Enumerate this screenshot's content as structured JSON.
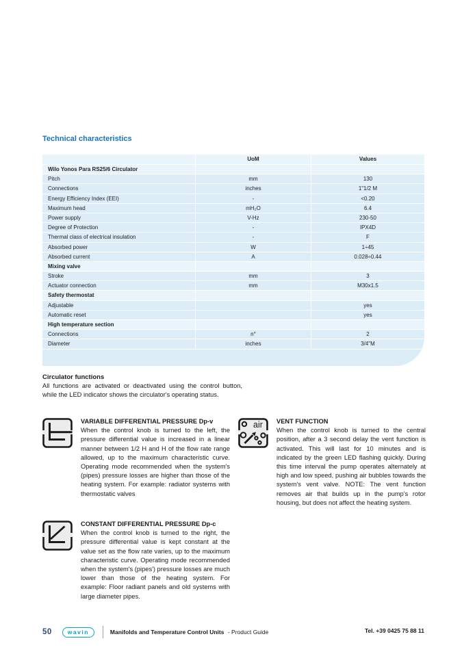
{
  "page": {
    "section_title": "Technical characteristics"
  },
  "table": {
    "headers": {
      "uom": "UoM",
      "values": "Values"
    },
    "rows": [
      {
        "type": "section",
        "label": "Wilo Yonos Para RS25/6 Circulator"
      },
      {
        "type": "data",
        "label": "Pitch",
        "uom": "mm",
        "value": "130"
      },
      {
        "type": "data",
        "label": "Connections",
        "uom": "inches",
        "value": "1\"1/2 M"
      },
      {
        "type": "data",
        "label": "Energy Efficiency Index (EEI)",
        "uom": "-",
        "value": "<0.20"
      },
      {
        "type": "data",
        "label": "Maximum head",
        "uom": "mH₂O",
        "value": "6.4"
      },
      {
        "type": "data",
        "label": "Power supply",
        "uom": "V-Hz",
        "value": "230-50"
      },
      {
        "type": "data",
        "label": "Degree of Protection",
        "uom": "-",
        "value": "IPX4D"
      },
      {
        "type": "data",
        "label": "Thermal class of electrical insulation",
        "uom": "-",
        "value": "F"
      },
      {
        "type": "data",
        "label": "Absorbed power",
        "uom": "W",
        "value": "1÷45"
      },
      {
        "type": "data",
        "label": "Absorbed current",
        "uom": "A",
        "value": "0.028÷0.44"
      },
      {
        "type": "section",
        "label": "Mixing valve"
      },
      {
        "type": "data",
        "label": "Stroke",
        "uom": "mm",
        "value": "3"
      },
      {
        "type": "data",
        "label": "Actuator connection",
        "uom": "mm",
        "value": "M30x1.5"
      },
      {
        "type": "section",
        "label": "Safety thermostat"
      },
      {
        "type": "data",
        "label": "Adjustable",
        "uom": "",
        "value": "yes"
      },
      {
        "type": "data",
        "label": "Automatic reset",
        "uom": "",
        "value": "yes"
      },
      {
        "type": "section",
        "label": "High temperature section"
      },
      {
        "type": "data",
        "label": "Connections",
        "uom": "n°",
        "value": "2"
      },
      {
        "type": "data",
        "label": "Diameter",
        "uom": "inches",
        "value": "3/4\"M"
      }
    ]
  },
  "circulator_functions": {
    "title": "Circulator functions",
    "body": "All functions are activated or deactivated using the control button, while the LED indicator shows the circulator's operating status."
  },
  "features": [
    {
      "title": "VARIABLE DIFFERENTIAL PRESSURE Dp-v",
      "body": "When the control knob is turned to the left, the pressure differential value is increased in a linear manner between 1/2 H and H of the flow rate range allowed, up to the maximum characteristic curve. Operating mode recommended when the system's (pipes) pressure losses are higher than those of the heating system. For example: radiator systems with thermostatic valves",
      "icon": "dpv-chart-icon"
    },
    {
      "title": "VENT FUNCTION",
      "body": "When the control knob is turned to the central position, after a 3 second delay the vent function is activated. This will last for 10 minutes and is indicated by the green LED flashing quickly. During this time interval the pump operates alternately at high and low speed, pushing air bubbles towards the system's vent valve. NOTE: The vent function removes air that builds up in the pump's rotor housing, but does not affect the heating system.",
      "icon": "air-vent-icon",
      "icon_label": "air"
    },
    {
      "title": "CONSTANT DIFFERENTIAL PRESSURE Dp-c",
      "body": "When the control knob is turned to the right, the pressure differential value is kept constant at the value set as the flow rate varies, up to the maximum characteristic curve. Operating mode recommended when the system's (pipes') pressure losses are much lower than those of the heating system. For example: Floor radiant panels and old systems with large diameter pipes.",
      "icon": "dpc-chart-icon"
    }
  ],
  "footer": {
    "page_number": "50",
    "logo_text": "wavin",
    "doc_title": "Manifolds and Temperature Control Units",
    "doc_subtitle": "- Product Guide",
    "phone": "Tel. +39 0425 75 88 11"
  },
  "colors": {
    "accent_blue": "#1b74bb",
    "table_row_bg": "#dcedf8",
    "table_section_bg": "#e9f4fb",
    "logo_teal": "#00a7cc",
    "page_number_navy": "#2e4a80",
    "icon_fill": "#ececec"
  }
}
